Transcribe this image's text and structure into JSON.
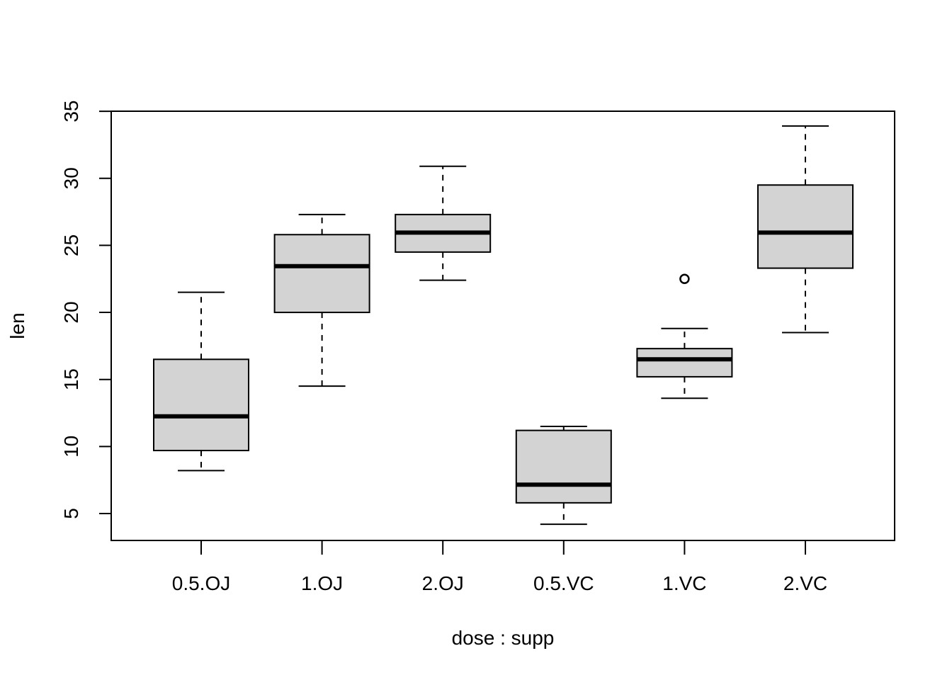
{
  "chart_data": {
    "type": "boxplot",
    "title": "",
    "xlabel": "dose : supp",
    "ylabel": "len",
    "ylim": [
      3,
      35
    ],
    "yticks": [
      5,
      10,
      15,
      20,
      25,
      30,
      35
    ],
    "box_fill": "#d3d3d3",
    "categories": [
      "0.5.OJ",
      "1.OJ",
      "2.OJ",
      "0.5.VC",
      "1.VC",
      "2.VC"
    ],
    "boxes": [
      {
        "label": "0.5.OJ",
        "whisker_low": 8.2,
        "q1": 9.7,
        "median": 12.25,
        "q3": 16.5,
        "whisker_high": 21.5,
        "outliers": []
      },
      {
        "label": "1.OJ",
        "whisker_low": 14.5,
        "q1": 20.0,
        "median": 23.45,
        "q3": 25.8,
        "whisker_high": 27.3,
        "outliers": []
      },
      {
        "label": "2.OJ",
        "whisker_low": 22.4,
        "q1": 24.5,
        "median": 25.95,
        "q3": 27.3,
        "whisker_high": 30.9,
        "outliers": []
      },
      {
        "label": "0.5.VC",
        "whisker_low": 4.2,
        "q1": 5.8,
        "median": 7.15,
        "q3": 11.2,
        "whisker_high": 11.5,
        "outliers": []
      },
      {
        "label": "1.VC",
        "whisker_low": 13.6,
        "q1": 15.2,
        "median": 16.5,
        "q3": 17.3,
        "whisker_high": 18.8,
        "outliers": [
          22.5
        ]
      },
      {
        "label": "2.VC",
        "whisker_low": 18.5,
        "q1": 23.3,
        "median": 25.95,
        "q3": 29.5,
        "whisker_high": 33.9,
        "outliers": []
      }
    ]
  }
}
